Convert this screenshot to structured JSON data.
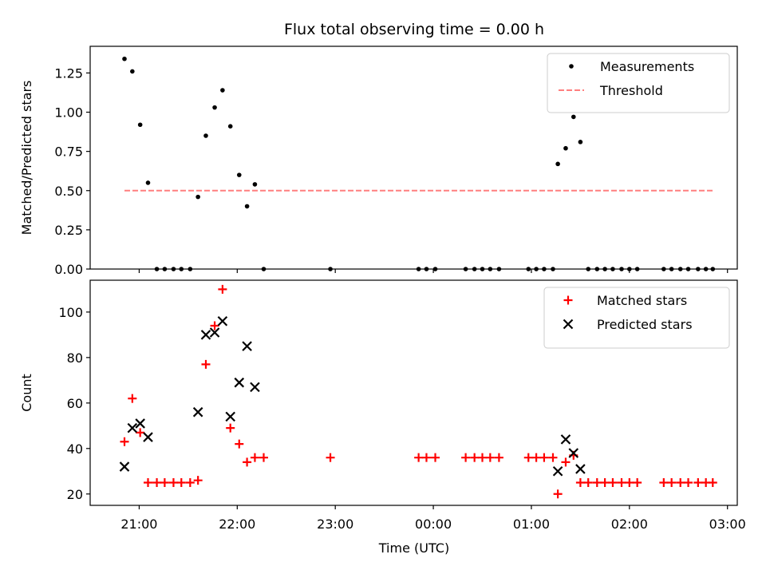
{
  "chart_data": {
    "title": "Flux total observing time = 0.00 h",
    "xlabel": "Time (UTC)",
    "x_ticks": [
      "21:00",
      "22:00",
      "23:00",
      "00:00",
      "01:00",
      "02:00",
      "03:00"
    ],
    "x_tick_hours": [
      21,
      22,
      23,
      24,
      25,
      26,
      27
    ],
    "xlim_hours": [
      20.5,
      27.1
    ],
    "panels": [
      {
        "type": "scatter",
        "ylabel": "Matched/Predicted stars",
        "ylim": [
          0,
          1.42
        ],
        "y_ticks": [
          0.0,
          0.25,
          0.5,
          0.75,
          1.0,
          1.25
        ],
        "y_tick_labels": [
          "0.00",
          "0.25",
          "0.50",
          "0.75",
          "1.00",
          "1.25"
        ],
        "legend_position": "top-right",
        "series": [
          {
            "name": "Measurements",
            "marker": "dot",
            "color": "#000000",
            "points": [
              [
                20.85,
                1.34
              ],
              [
                20.93,
                1.26
              ],
              [
                21.01,
                0.92
              ],
              [
                21.09,
                0.55
              ],
              [
                21.18,
                0.0
              ],
              [
                21.26,
                0.0
              ],
              [
                21.35,
                0.0
              ],
              [
                21.43,
                0.0
              ],
              [
                21.52,
                0.0
              ],
              [
                21.6,
                0.46
              ],
              [
                21.68,
                0.85
              ],
              [
                21.77,
                1.03
              ],
              [
                21.85,
                1.14
              ],
              [
                21.93,
                0.91
              ],
              [
                22.02,
                0.6
              ],
              [
                22.1,
                0.4
              ],
              [
                22.18,
                0.54
              ],
              [
                22.27,
                0.0
              ],
              [
                22.95,
                0.0
              ],
              [
                23.85,
                0.0
              ],
              [
                23.93,
                0.0
              ],
              [
                24.02,
                0.0
              ],
              [
                24.33,
                0.0
              ],
              [
                24.42,
                0.0
              ],
              [
                24.5,
                0.0
              ],
              [
                24.58,
                0.0
              ],
              [
                24.67,
                0.0
              ],
              [
                24.97,
                0.0
              ],
              [
                25.05,
                0.0
              ],
              [
                25.13,
                0.0
              ],
              [
                25.22,
                0.0
              ],
              [
                25.27,
                0.67
              ],
              [
                25.35,
                0.77
              ],
              [
                25.43,
                0.97
              ],
              [
                25.5,
                0.81
              ],
              [
                25.58,
                0.0
              ],
              [
                25.67,
                0.0
              ],
              [
                25.75,
                0.0
              ],
              [
                25.83,
                0.0
              ],
              [
                25.92,
                0.0
              ],
              [
                26.0,
                0.0
              ],
              [
                26.08,
                0.0
              ],
              [
                26.35,
                0.0
              ],
              [
                26.43,
                0.0
              ],
              [
                26.52,
                0.0
              ],
              [
                26.6,
                0.0
              ],
              [
                26.7,
                0.0
              ],
              [
                26.78,
                0.0
              ],
              [
                26.85,
                0.0
              ]
            ]
          },
          {
            "name": "Threshold",
            "marker": "dashed-line",
            "color": "#ff7f7f",
            "points": [
              [
                20.85,
                0.5
              ],
              [
                26.85,
                0.5
              ]
            ]
          }
        ]
      },
      {
        "type": "scatter",
        "ylabel": "Count",
        "ylim": [
          15,
          114
        ],
        "y_ticks": [
          20,
          40,
          60,
          80,
          100
        ],
        "y_tick_labels": [
          "20",
          "40",
          "60",
          "80",
          "100"
        ],
        "legend_position": "top-right",
        "series": [
          {
            "name": "Matched stars",
            "marker": "plus",
            "color": "#ff0000",
            "points": [
              [
                20.85,
                43
              ],
              [
                20.93,
                62
              ],
              [
                21.01,
                47
              ],
              [
                21.09,
                25
              ],
              [
                21.18,
                25
              ],
              [
                21.26,
                25
              ],
              [
                21.35,
                25
              ],
              [
                21.43,
                25
              ],
              [
                21.52,
                25
              ],
              [
                21.6,
                26
              ],
              [
                21.68,
                77
              ],
              [
                21.77,
                94
              ],
              [
                21.85,
                110
              ],
              [
                21.93,
                49
              ],
              [
                22.02,
                42
              ],
              [
                22.1,
                34
              ],
              [
                22.18,
                36
              ],
              [
                22.27,
                36
              ],
              [
                22.95,
                36
              ],
              [
                23.85,
                36
              ],
              [
                23.93,
                36
              ],
              [
                24.02,
                36
              ],
              [
                24.33,
                36
              ],
              [
                24.42,
                36
              ],
              [
                24.5,
                36
              ],
              [
                24.58,
                36
              ],
              [
                24.67,
                36
              ],
              [
                24.97,
                36
              ],
              [
                25.05,
                36
              ],
              [
                25.13,
                36
              ],
              [
                25.22,
                36
              ],
              [
                25.27,
                20
              ],
              [
                25.35,
                34
              ],
              [
                25.43,
                37
              ],
              [
                25.5,
                25
              ],
              [
                25.58,
                25
              ],
              [
                25.67,
                25
              ],
              [
                25.75,
                25
              ],
              [
                25.83,
                25
              ],
              [
                25.92,
                25
              ],
              [
                26.0,
                25
              ],
              [
                26.08,
                25
              ],
              [
                26.35,
                25
              ],
              [
                26.43,
                25
              ],
              [
                26.52,
                25
              ],
              [
                26.6,
                25
              ],
              [
                26.7,
                25
              ],
              [
                26.78,
                25
              ],
              [
                26.85,
                25
              ]
            ]
          },
          {
            "name": "Predicted stars",
            "marker": "x",
            "color": "#000000",
            "points": [
              [
                20.85,
                32
              ],
              [
                20.93,
                49
              ],
              [
                21.01,
                51
              ],
              [
                21.09,
                45
              ],
              [
                21.6,
                56
              ],
              [
                21.68,
                90
              ],
              [
                21.77,
                91
              ],
              [
                21.85,
                96
              ],
              [
                21.93,
                54
              ],
              [
                22.02,
                69
              ],
              [
                22.1,
                85
              ],
              [
                22.18,
                67
              ],
              [
                25.27,
                30
              ],
              [
                25.35,
                44
              ],
              [
                25.43,
                38
              ],
              [
                25.5,
                31
              ]
            ]
          }
        ]
      }
    ]
  }
}
